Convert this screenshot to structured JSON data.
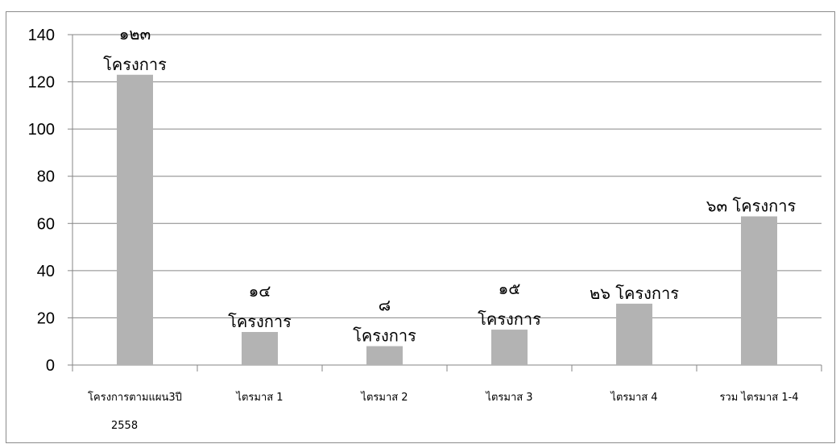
{
  "chart_data": {
    "type": "bar",
    "categories": [
      [
        "โครงการตามแผน3ปี",
        "2558"
      ],
      [
        "ไตรมาส 1"
      ],
      [
        "ไตรมาส 2"
      ],
      [
        "ไตรมาส 3"
      ],
      [
        "ไตรมาส 4"
      ],
      [
        "รวม ไตรมาส 1-4"
      ]
    ],
    "values": [
      123,
      14,
      8,
      15,
      26,
      63
    ],
    "data_labels": [
      [
        "๑๒๓",
        "โครงการ"
      ],
      [
        "๑๔",
        "โครงการ"
      ],
      [
        "๘",
        "โครงการ"
      ],
      [
        "๑๕",
        "โครงการ"
      ],
      [
        "๒๖ โครงการ"
      ],
      [
        "๖๓ โครงการ"
      ]
    ],
    "yticks": [
      "0",
      "20",
      "40",
      "60",
      "80",
      "100",
      "120",
      "140"
    ],
    "ylim": [
      0,
      140
    ],
    "grid": true,
    "legend": "none",
    "bar_color": "#b3b3b3",
    "grid_color": "#868686"
  }
}
